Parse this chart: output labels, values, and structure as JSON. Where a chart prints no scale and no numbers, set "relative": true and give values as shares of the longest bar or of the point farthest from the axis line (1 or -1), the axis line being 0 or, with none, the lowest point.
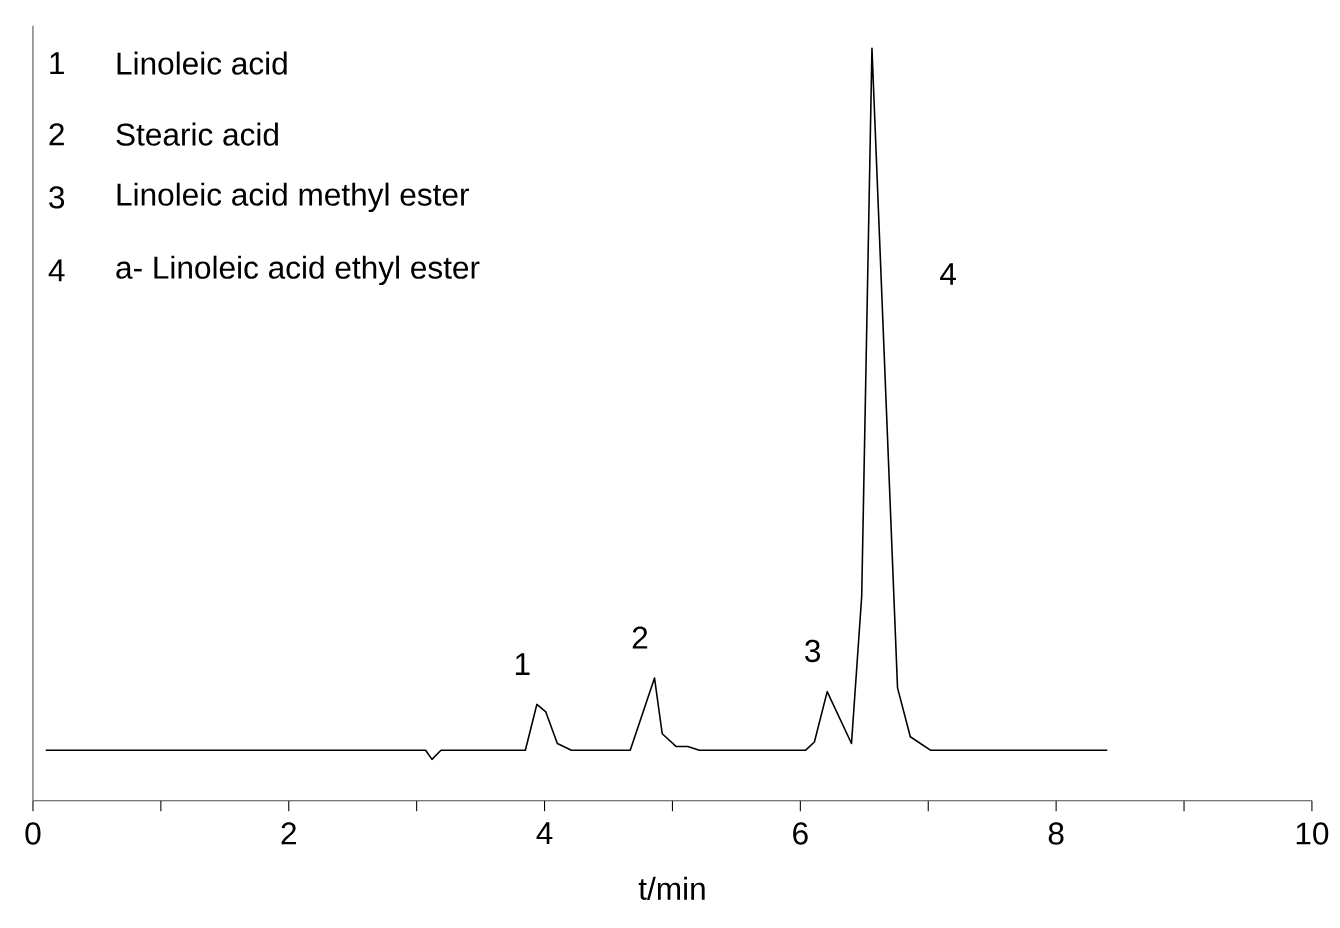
{
  "chart_data": {
    "type": "line",
    "relative": true,
    "xlabel": "t/min",
    "xlim": [
      0,
      10
    ],
    "xticks": [
      0,
      {
        "value": 1,
        "label": null
      },
      2,
      {
        "value": 3,
        "label": null
      },
      4,
      {
        "value": 5,
        "label": null
      },
      6,
      {
        "value": 7,
        "label": null
      },
      8,
      {
        "value": 9,
        "label": null
      },
      10
    ],
    "x": [
      0.1,
      3.07,
      3.12,
      3.19,
      3.85,
      3.94,
      4.01,
      4.1,
      4.21,
      4.67,
      4.86,
      4.92,
      5.03,
      5.12,
      5.21,
      6.04,
      6.11,
      6.21,
      6.4,
      6.48,
      6.56,
      6.76,
      6.86,
      7.02,
      8.4
    ],
    "series": [
      {
        "color": "#000000",
        "values": [
          0.067,
          0.067,
          0.055,
          0.067,
          0.067,
          0.128,
          0.118,
          0.076,
          0.067,
          0.067,
          0.163,
          0.089,
          0.072,
          0.072,
          0.067,
          0.067,
          0.078,
          0.145,
          0.076,
          0.272,
          1.0,
          0.15,
          0.085,
          0.067,
          0.067
        ]
      }
    ],
    "marker": "none",
    "line_style": "solid",
    "grid": false,
    "annotations": [
      "1",
      "Linoleic acid",
      "2",
      "Stearic acid",
      "3",
      "Linoleic acid methyl ester",
      "4",
      "a- Linoleic acid ethyl ester",
      {
        "text": "1",
        "x": 3.94,
        "y": 0.128
      },
      {
        "text": "2",
        "x": 4.86,
        "y": 0.163
      },
      {
        "text": "3",
        "x": 6.21,
        "y": 0.145
      },
      {
        "text": "4",
        "x": 6.63,
        "y": 0.7
      }
    ]
  }
}
